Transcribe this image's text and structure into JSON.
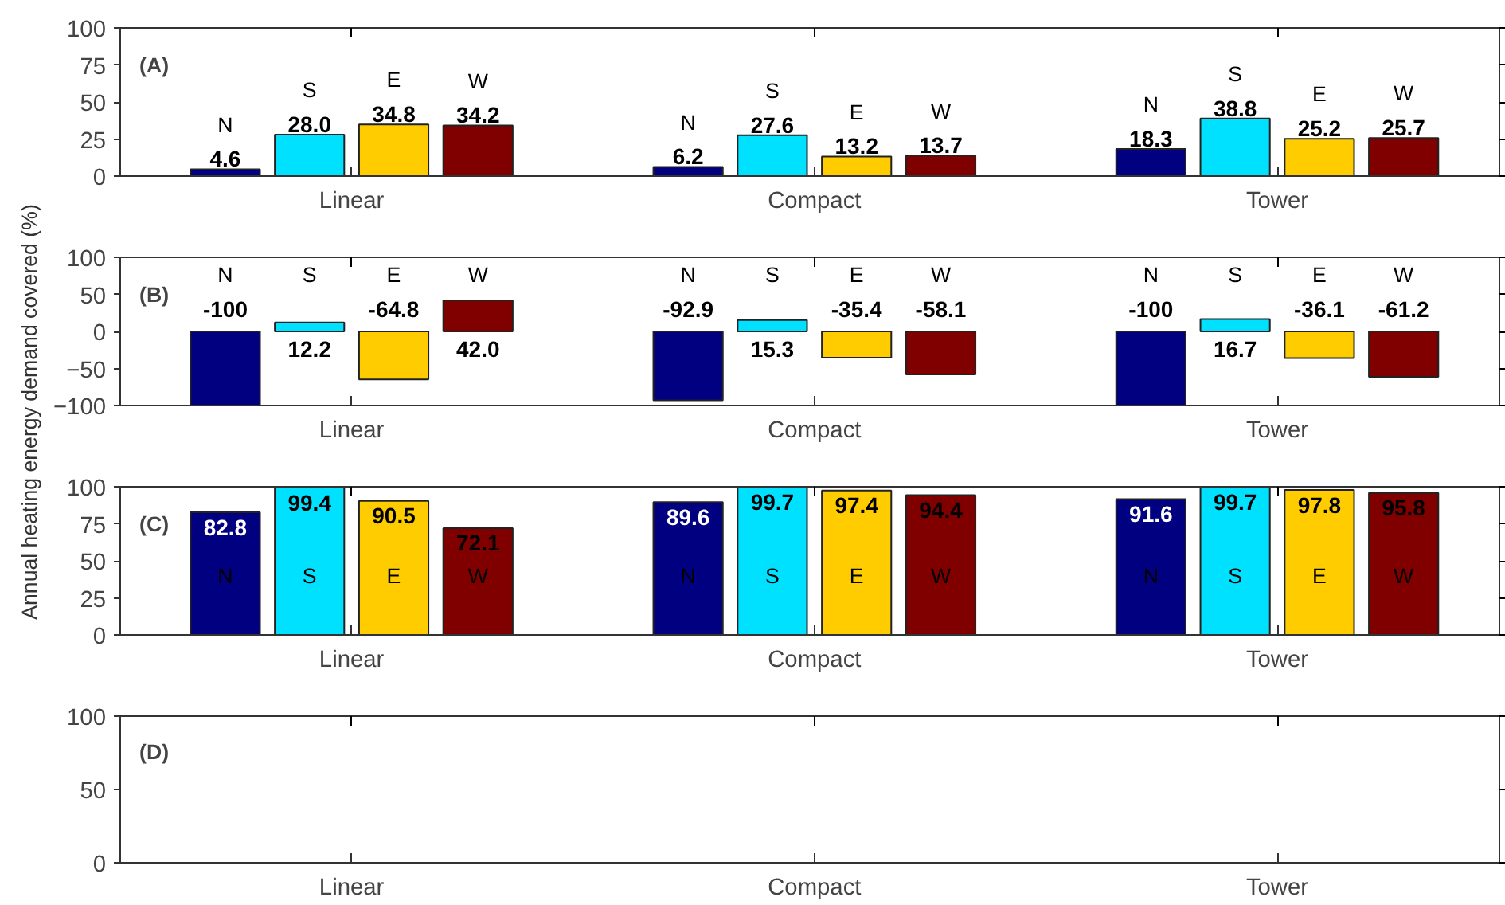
{
  "chart_data": [
    {
      "type": "bar",
      "categories": [
        "Linear",
        "Compact",
        "Tower"
      ],
      "ylim": [
        0,
        100
      ],
      "yticks": [
        0,
        25,
        50,
        75,
        100
      ],
      "annotations": [
        "(A)"
      ],
      "grid": false,
      "series": [
        {
          "name": "N",
          "color": "#000080",
          "values": [
            4.6,
            6.2,
            18.3
          ],
          "value_labels": [
            "4.6",
            "6.2",
            "18.3"
          ]
        },
        {
          "name": "S",
          "color": "#00e0ff",
          "values": [
            28.0,
            27.6,
            38.8
          ],
          "value_labels": [
            "28.0",
            "27.6",
            "38.8"
          ]
        },
        {
          "name": "E",
          "color": "#ffcc00",
          "values": [
            34.8,
            13.2,
            25.2
          ],
          "value_labels": [
            "34.8",
            "13.2",
            "25.2"
          ]
        },
        {
          "name": "W",
          "color": "#800000",
          "values": [
            34.2,
            13.7,
            25.7
          ],
          "value_labels": [
            "34.2",
            "13.7",
            "25.7"
          ]
        }
      ]
    },
    {
      "type": "bar",
      "categories": [
        "Linear",
        "Compact",
        "Tower"
      ],
      "ylim": [
        -100,
        100
      ],
      "yticks": [
        -100,
        -50,
        0,
        50,
        100
      ],
      "ylabel": "Annual heating energy demand covered (%)",
      "annotations": [
        "(B)"
      ],
      "grid": false,
      "series": [
        {
          "name": "N",
          "color": "#000080",
          "values": [
            -100,
            -92.9,
            -100
          ],
          "value_labels": [
            "-100",
            "-92.9",
            "-100"
          ]
        },
        {
          "name": "S",
          "color": "#00e0ff",
          "values": [
            12.2,
            15.3,
            16.7
          ],
          "value_labels": [
            "12.2",
            "15.3",
            "16.7"
          ]
        },
        {
          "name": "E",
          "color": "#ffcc00",
          "values": [
            -64.8,
            -35.4,
            -36.1
          ],
          "value_labels": [
            "-64.8",
            "-35.4",
            "-36.1"
          ]
        },
        {
          "name": "W",
          "color": "#800000",
          "values": [
            42.0,
            -58.1,
            -61.2
          ],
          "value_labels": [
            "42.0",
            "-58.1",
            "-61.2"
          ]
        }
      ]
    },
    {
      "type": "bar",
      "categories": [
        "Linear",
        "Compact",
        "Tower"
      ],
      "ylim": [
        0,
        100
      ],
      "yticks": [
        0,
        25,
        50,
        75,
        100
      ],
      "annotations": [
        "(C)"
      ],
      "grid": false,
      "series": [
        {
          "name": "N",
          "color": "#000080",
          "values": [
            82.8,
            89.6,
            91.6
          ],
          "value_labels": [
            "82.8",
            "89.6",
            "91.6"
          ]
        },
        {
          "name": "S",
          "color": "#00e0ff",
          "values": [
            99.4,
            99.7,
            99.7
          ],
          "value_labels": [
            "99.4",
            "99.7",
            "99.7"
          ]
        },
        {
          "name": "E",
          "color": "#ffcc00",
          "values": [
            90.5,
            97.4,
            97.8
          ],
          "value_labels": [
            "90.5",
            "97.4",
            "97.8"
          ]
        },
        {
          "name": "W",
          "color": "#800000",
          "values": [
            72.1,
            94.4,
            95.8
          ],
          "value_labels": [
            "72.1",
            "94.4",
            "95.8"
          ]
        }
      ]
    },
    {
      "type": "bar",
      "categories": [
        "Linear",
        "Compact",
        "Tower"
      ],
      "ylim": [
        0,
        100
      ],
      "yticks": [
        0,
        50,
        100
      ],
      "annotations": [
        "(D)"
      ],
      "grid": false
    }
  ]
}
